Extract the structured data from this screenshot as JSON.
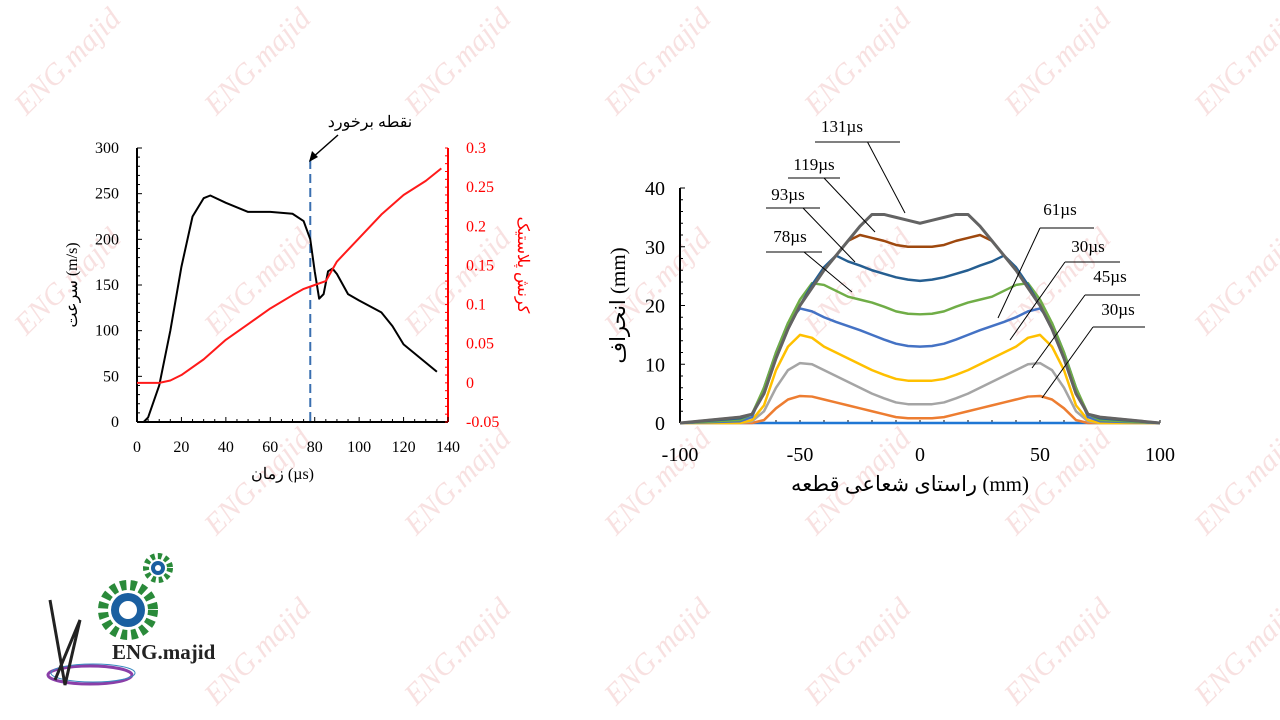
{
  "watermark_text": "ENG.majid",
  "logo": {
    "text": "ENG.majid",
    "colors": {
      "gear": "#2a8a3a",
      "ring": "#1a5fa0"
    }
  },
  "chart_data": [
    {
      "type": "line",
      "xlabel": "زمان (µs)",
      "ylabel": "سرعت (m/s)",
      "y2label": "کرنش پلاستیک",
      "xlim": [
        0,
        140
      ],
      "ylim": [
        0,
        300
      ],
      "y2lim": [
        -0.05,
        0.3
      ],
      "xticks": [
        "0",
        "20",
        "40",
        "60",
        "80",
        "100",
        "120",
        "140"
      ],
      "yticks": [
        "0",
        "50",
        "100",
        "150",
        "200",
        "250",
        "300"
      ],
      "y2ticks": [
        "-0.05",
        "0",
        "0.05",
        "0.1",
        "0.15",
        "0.2",
        "0.25",
        "0.3"
      ],
      "grid": false,
      "annotation": {
        "text": "نقطه برخورد",
        "x": 78
      },
      "colors": {
        "velocity": "#000000",
        "strain": "#ff1a1a",
        "impact": "#3a6fb0"
      },
      "series": [
        {
          "axis": "left",
          "x": [
            0,
            3,
            5,
            10,
            15,
            20,
            25,
            30,
            33,
            40,
            50,
            60,
            70,
            75,
            78,
            80,
            82,
            84,
            86,
            88,
            90,
            95,
            100,
            110,
            115,
            120,
            130,
            135
          ],
          "y": [
            0,
            0,
            5,
            40,
            100,
            170,
            225,
            245,
            248,
            240,
            230,
            230,
            228,
            220,
            200,
            165,
            135,
            140,
            165,
            168,
            162,
            140,
            133,
            120,
            105,
            85,
            65,
            55
          ]
        },
        {
          "axis": "right",
          "x": [
            0,
            10,
            15,
            20,
            30,
            40,
            50,
            60,
            70,
            75,
            80,
            85,
            90,
            100,
            110,
            120,
            130,
            137
          ],
          "y": [
            0,
            0,
            0.003,
            0.01,
            0.03,
            0.055,
            0.075,
            0.095,
            0.112,
            0.12,
            0.125,
            0.13,
            0.155,
            0.185,
            0.215,
            0.24,
            0.258,
            0.274
          ]
        }
      ]
    },
    {
      "type": "line",
      "xlabel": "راستای شعاعی قطعه (mm)",
      "ylabel": "انحراف (mm)",
      "xlim": [
        -100,
        100
      ],
      "ylim": [
        0,
        40
      ],
      "xticks": [
        "-100",
        "-50",
        "0",
        "50",
        "100"
      ],
      "yticks": [
        "0",
        "10",
        "20",
        "30",
        "40"
      ],
      "grid": false,
      "x": [
        -100,
        -75,
        -70,
        -65,
        -60,
        -55,
        -50,
        -45,
        -40,
        -35,
        -30,
        -25,
        -20,
        -15,
        -10,
        -5,
        0,
        5,
        10,
        15,
        20,
        25,
        30,
        35,
        40,
        45,
        50,
        55,
        60,
        65,
        70,
        75,
        100
      ],
      "series": [
        {
          "name": "",
          "color": "#1f77d4",
          "y": [
            0,
            0,
            0,
            0,
            0,
            0,
            0,
            0,
            0,
            0,
            0,
            0,
            0,
            0,
            0,
            0,
            0,
            0,
            0,
            0,
            0,
            0,
            0,
            0,
            0,
            0,
            0,
            0,
            0,
            0,
            0,
            0,
            0
          ]
        },
        {
          "name": "30µs",
          "color": "#ed7d31",
          "y": [
            0,
            0,
            0,
            0.5,
            2.5,
            4,
            4.6,
            4.5,
            4,
            3.5,
            3,
            2.5,
            2,
            1.5,
            1,
            0.8,
            0.8,
            0.8,
            1,
            1.5,
            2,
            2.5,
            3,
            3.5,
            4,
            4.5,
            4.6,
            4,
            2.5,
            0.5,
            0,
            0,
            0
          ]
        },
        {
          "name": "45µs",
          "color": "#a5a5a5",
          "y": [
            0,
            0,
            0.3,
            2,
            6,
            9,
            10.2,
            10,
            9,
            8,
            7,
            6,
            5,
            4.2,
            3.5,
            3.2,
            3.2,
            3.2,
            3.5,
            4.2,
            5,
            6,
            7,
            8,
            9,
            10,
            10.2,
            9,
            6,
            2,
            0.3,
            0,
            0
          ]
        },
        {
          "name": "30µs",
          "color": "#ffc000",
          "y": [
            0,
            0,
            0.5,
            3,
            9,
            13,
            15,
            14.5,
            13,
            12,
            11,
            10,
            9,
            8.2,
            7.5,
            7.2,
            7.2,
            7.2,
            7.5,
            8.2,
            9,
            10,
            11,
            12,
            13,
            14.5,
            15,
            13,
            9,
            3,
            0.5,
            0,
            0
          ]
        },
        {
          "name": "61µs",
          "color": "#4472c4",
          "y": [
            0,
            0.3,
            1,
            6,
            12,
            17,
            19.5,
            19,
            18,
            17.2,
            16.5,
            15.8,
            15,
            14.2,
            13.5,
            13.1,
            13,
            13.1,
            13.5,
            14.2,
            15,
            15.8,
            16.5,
            17.2,
            18,
            19,
            19.5,
            17,
            12,
            6,
            1,
            0.3,
            0
          ]
        },
        {
          "name": "78µs",
          "color": "#70ad47",
          "y": [
            0,
            0.5,
            1.5,
            6,
            12,
            17,
            21,
            23.8,
            23.5,
            22.5,
            21.5,
            21,
            20.5,
            19.8,
            19,
            18.6,
            18.5,
            18.6,
            19,
            19.8,
            20.5,
            21,
            21.5,
            22.5,
            23.5,
            23.8,
            21,
            17,
            12,
            6,
            1.5,
            0.5,
            0
          ]
        },
        {
          "name": "93µs",
          "color": "#255e91",
          "y": [
            0,
            0.8,
            1.5,
            5,
            11,
            16,
            20,
            23.5,
            26.5,
            28.5,
            27.5,
            26.8,
            26,
            25.4,
            24.8,
            24.4,
            24.2,
            24.4,
            24.8,
            25.4,
            26,
            26.8,
            27.5,
            28.5,
            26.5,
            23.5,
            20,
            16,
            11,
            5,
            1.5,
            0.8,
            0
          ]
        },
        {
          "name": "119µs",
          "color": "#9e480e",
          "y": [
            0,
            1,
            1.5,
            5,
            11,
            16,
            20,
            23,
            26,
            28.5,
            31,
            32,
            31.5,
            31,
            30.3,
            30,
            30,
            30,
            30.3,
            31,
            31.5,
            32,
            31,
            28.5,
            26,
            23,
            20,
            16,
            11,
            5,
            1.5,
            1,
            0
          ]
        },
        {
          "name": "131µs",
          "color": "#636363",
          "y": [
            0,
            1,
            1.5,
            5,
            11,
            16,
            20,
            23,
            26,
            28.5,
            31,
            33.5,
            35.5,
            35.5,
            35,
            34.5,
            34,
            34.5,
            35,
            35.5,
            35.5,
            33.5,
            31,
            28.5,
            26,
            23,
            20,
            16,
            11,
            5,
            1.5,
            1,
            0
          ]
        }
      ]
    }
  ]
}
